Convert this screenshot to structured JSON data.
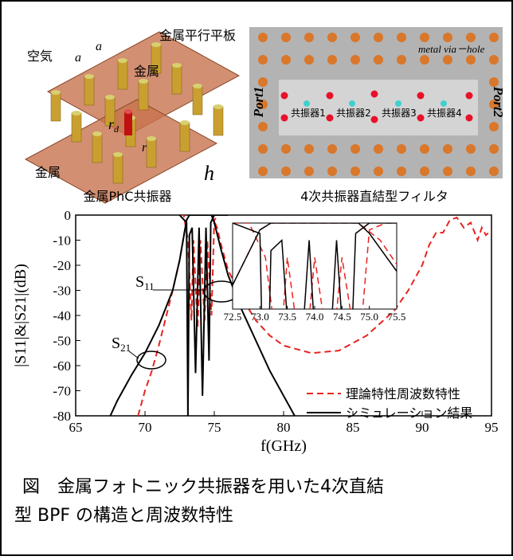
{
  "diagrams": {
    "left": {
      "labels": [
        "金属平行平板",
        "空気",
        "a",
        "a",
        "金属",
        "r",
        "d",
        "r",
        "金属",
        "h"
      ],
      "caption": "金属PhC共振器"
    },
    "right": {
      "via": "metal via－hole",
      "port1": "Port1",
      "port2": "Port2",
      "resonators": [
        "共振器1",
        "共振器2",
        "共振器3",
        "共振器4"
      ],
      "caption": "4次共振器直結型フィルタ"
    }
  },
  "chart_data": [
    {
      "type": "line",
      "xlabel": "f(GHz)",
      "ylabel": "|S11|&|S21|(dB)",
      "xlim": [
        65,
        95
      ],
      "xticks": [
        65,
        70,
        75,
        80,
        85,
        90,
        95
      ],
      "ylim": [
        -80,
        0
      ],
      "yticks": [
        -80,
        -70,
        -60,
        -50,
        -40,
        -30,
        -20,
        -10,
        0
      ],
      "annotations": [
        {
          "text": "S",
          "sub": "11"
        },
        {
          "text": "S",
          "sub": "21"
        }
      ],
      "series": [
        {
          "name": "理論特性周波数特性",
          "color": "#e8231f",
          "linestyle": "dashed",
          "curves": [
            {
              "x": [
                69.5,
                70,
                70.5,
                71,
                72,
                72.5,
                73,
                73.2,
                74.8,
                75.2,
                75.5,
                76,
                77,
                78,
                79,
                80,
                82,
                84,
                86,
                88,
                89,
                90,
                90.5,
                91,
                91.5,
                92,
                92.5,
                93,
                93.5,
                94,
                94.3,
                94.6,
                95
              ],
              "values": [
                -80,
                -70,
                -62,
                -52,
                -30,
                -18,
                -2,
                0,
                0,
                -5,
                -12,
                -22,
                -33,
                -42,
                -48,
                -52,
                -55,
                -54,
                -48,
                -38,
                -30,
                -20,
                -12,
                -7,
                -7,
                -2,
                -1,
                -5,
                -3,
                -10,
                -5,
                -8,
                -6
              ]
            },
            {
              "x": [
                72.5,
                72.8,
                73.1,
                73.35,
                73.5,
                73.8,
                74,
                74.3,
                74.5,
                74.8,
                75,
                75.3,
                76
              ],
              "values": [
                0,
                0,
                -10,
                -42,
                -10,
                -45,
                -10,
                -42,
                -10,
                -40,
                -2,
                0,
                0
              ]
            }
          ]
        },
        {
          "name": "シミュレーション結果",
          "color": "#000000",
          "linestyle": "solid",
          "curves": [
            {
              "x": [
                67.5,
                68,
                69,
                70,
                71,
                72,
                72.5,
                73,
                73.2,
                74.8,
                75,
                75.5,
                76,
                77,
                78,
                79,
                80,
                80.8
              ],
              "values": [
                -80,
                -74,
                -64,
                -55,
                -44,
                -30,
                -18,
                -2,
                0,
                0,
                -3,
                -14,
                -24,
                -38,
                -50,
                -62,
                -72,
                -80
              ]
            },
            {
              "x": [
                72.5,
                73,
                73.1,
                73.2,
                73.4,
                73.65,
                73.9,
                74.15,
                74.4,
                74.62,
                74.75,
                75,
                76
              ],
              "values": [
                0,
                -3,
                -80,
                -8,
                -5,
                -63,
                -5,
                -72,
                -5,
                -58,
                -3,
                0,
                0
              ]
            }
          ]
        }
      ]
    },
    {
      "type": "line",
      "xlim": [
        72.5,
        75.5
      ],
      "ylim": [
        -25,
        0
      ],
      "xticks": [
        72.5,
        {
          "value": 73,
          "label": "73.0"
        },
        73.5,
        {
          "value": 74,
          "label": "74.0"
        },
        74.5,
        {
          "value": 75,
          "label": "75.0"
        },
        75.5
      ]
    }
  ],
  "caption": [
    "図　金属フォトニック共振器を用いた4次直結",
    "型 BPF の構造と周波数特性"
  ]
}
